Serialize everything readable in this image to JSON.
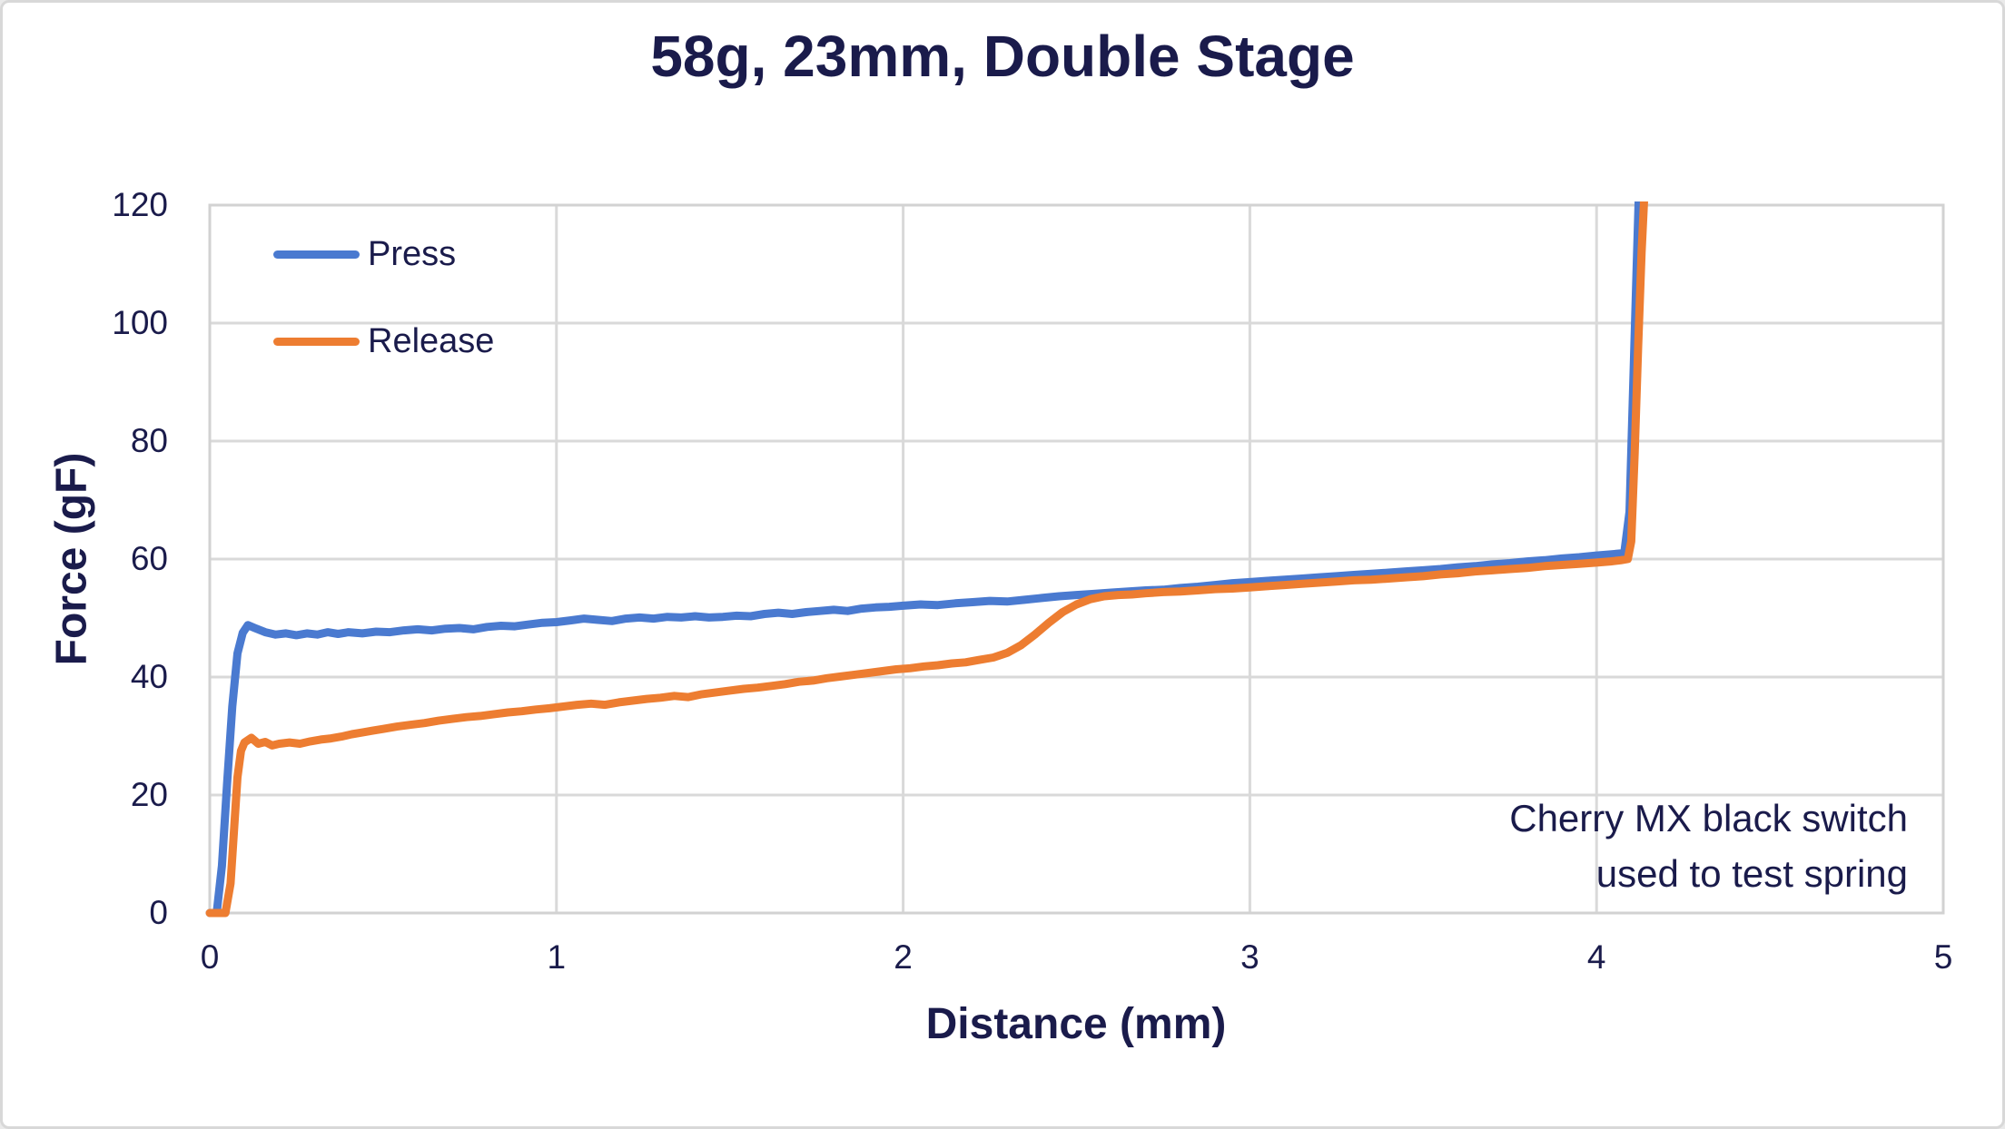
{
  "title": "58g, 23mm, Double Stage",
  "annotation": {
    "line1": "Cherry MX black switch",
    "line2": "used to test spring"
  },
  "colors": {
    "text": "#1A1B4B",
    "press": "#4A7AD0",
    "release": "#ED7D31",
    "gridline": "#D9D9D9",
    "plot_border": "#D2D2D2",
    "page_border": "#D8D8D8",
    "background": "#FFFFFF"
  },
  "chart_data": {
    "type": "line",
    "title": "58g, 23mm, Double Stage",
    "xlabel": "Distance (mm)",
    "ylabel": "Force (gF)",
    "xlim": [
      0,
      5
    ],
    "ylim": [
      0,
      120
    ],
    "x_ticks": [
      0,
      1,
      2,
      3,
      4,
      5
    ],
    "y_ticks": [
      0,
      20,
      40,
      60,
      80,
      100,
      120
    ],
    "grid": true,
    "legend_position": "inside top-left",
    "annotation_text": "Cherry MX black switch used to test spring",
    "series": [
      {
        "name": "Press",
        "color": "#4A7AD0",
        "points": [
          [
            0,
            0
          ],
          [
            0.02,
            0
          ],
          [
            0.035,
            8
          ],
          [
            0.05,
            22
          ],
          [
            0.065,
            35
          ],
          [
            0.08,
            44
          ],
          [
            0.095,
            47.5
          ],
          [
            0.11,
            48.8
          ],
          [
            0.13,
            48.3
          ],
          [
            0.16,
            47.6
          ],
          [
            0.19,
            47.2
          ],
          [
            0.22,
            47.4
          ],
          [
            0.25,
            47.1
          ],
          [
            0.28,
            47.4
          ],
          [
            0.31,
            47.2
          ],
          [
            0.34,
            47.6
          ],
          [
            0.37,
            47.3
          ],
          [
            0.4,
            47.6
          ],
          [
            0.44,
            47.4
          ],
          [
            0.48,
            47.7
          ],
          [
            0.52,
            47.6
          ],
          [
            0.56,
            47.9
          ],
          [
            0.6,
            48.1
          ],
          [
            0.64,
            47.9
          ],
          [
            0.68,
            48.2
          ],
          [
            0.72,
            48.3
          ],
          [
            0.76,
            48.1
          ],
          [
            0.8,
            48.5
          ],
          [
            0.84,
            48.7
          ],
          [
            0.88,
            48.6
          ],
          [
            0.92,
            48.9
          ],
          [
            0.96,
            49.2
          ],
          [
            1.0,
            49.3
          ],
          [
            1.04,
            49.6
          ],
          [
            1.08,
            49.9
          ],
          [
            1.12,
            49.7
          ],
          [
            1.16,
            49.5
          ],
          [
            1.2,
            49.9
          ],
          [
            1.24,
            50.1
          ],
          [
            1.28,
            49.9
          ],
          [
            1.32,
            50.2
          ],
          [
            1.36,
            50.1
          ],
          [
            1.4,
            50.3
          ],
          [
            1.44,
            50.1
          ],
          [
            1.48,
            50.2
          ],
          [
            1.52,
            50.4
          ],
          [
            1.56,
            50.3
          ],
          [
            1.6,
            50.7
          ],
          [
            1.64,
            50.9
          ],
          [
            1.68,
            50.7
          ],
          [
            1.72,
            51.0
          ],
          [
            1.76,
            51.2
          ],
          [
            1.8,
            51.4
          ],
          [
            1.84,
            51.2
          ],
          [
            1.88,
            51.6
          ],
          [
            1.92,
            51.8
          ],
          [
            1.96,
            51.9
          ],
          [
            2.0,
            52.1
          ],
          [
            2.05,
            52.3
          ],
          [
            2.1,
            52.2
          ],
          [
            2.15,
            52.5
          ],
          [
            2.2,
            52.7
          ],
          [
            2.25,
            52.9
          ],
          [
            2.3,
            52.8
          ],
          [
            2.35,
            53.1
          ],
          [
            2.4,
            53.4
          ],
          [
            2.45,
            53.7
          ],
          [
            2.5,
            53.9
          ],
          [
            2.55,
            54.1
          ],
          [
            2.6,
            54.3
          ],
          [
            2.65,
            54.5
          ],
          [
            2.7,
            54.7
          ],
          [
            2.75,
            54.8
          ],
          [
            2.8,
            55.1
          ],
          [
            2.85,
            55.3
          ],
          [
            2.9,
            55.6
          ],
          [
            2.95,
            55.9
          ],
          [
            3.0,
            56.1
          ],
          [
            3.05,
            56.3
          ],
          [
            3.1,
            56.5
          ],
          [
            3.15,
            56.7
          ],
          [
            3.2,
            56.9
          ],
          [
            3.25,
            57.1
          ],
          [
            3.3,
            57.3
          ],
          [
            3.35,
            57.5
          ],
          [
            3.4,
            57.7
          ],
          [
            3.45,
            57.9
          ],
          [
            3.5,
            58.1
          ],
          [
            3.55,
            58.3
          ],
          [
            3.6,
            58.6
          ],
          [
            3.65,
            58.8
          ],
          [
            3.7,
            59.1
          ],
          [
            3.75,
            59.3
          ],
          [
            3.8,
            59.6
          ],
          [
            3.85,
            59.8
          ],
          [
            3.9,
            60.1
          ],
          [
            3.95,
            60.3
          ],
          [
            4.0,
            60.6
          ],
          [
            4.04,
            60.8
          ],
          [
            4.08,
            61.0
          ],
          [
            4.095,
            68
          ],
          [
            4.105,
            88
          ],
          [
            4.115,
            108
          ],
          [
            4.122,
            122
          ]
        ]
      },
      {
        "name": "Release",
        "color": "#ED7D31",
        "points": [
          [
            0,
            0
          ],
          [
            0.045,
            0
          ],
          [
            0.06,
            5
          ],
          [
            0.07,
            14
          ],
          [
            0.08,
            23
          ],
          [
            0.09,
            27.5
          ],
          [
            0.1,
            28.9
          ],
          [
            0.12,
            29.7
          ],
          [
            0.14,
            28.7
          ],
          [
            0.16,
            29.0
          ],
          [
            0.18,
            28.4
          ],
          [
            0.2,
            28.7
          ],
          [
            0.23,
            28.9
          ],
          [
            0.26,
            28.7
          ],
          [
            0.29,
            29.1
          ],
          [
            0.32,
            29.4
          ],
          [
            0.35,
            29.6
          ],
          [
            0.38,
            29.9
          ],
          [
            0.41,
            30.3
          ],
          [
            0.44,
            30.6
          ],
          [
            0.47,
            30.9
          ],
          [
            0.5,
            31.2
          ],
          [
            0.54,
            31.6
          ],
          [
            0.58,
            31.9
          ],
          [
            0.62,
            32.2
          ],
          [
            0.66,
            32.6
          ],
          [
            0.7,
            32.9
          ],
          [
            0.74,
            33.2
          ],
          [
            0.78,
            33.4
          ],
          [
            0.82,
            33.7
          ],
          [
            0.86,
            34.0
          ],
          [
            0.9,
            34.2
          ],
          [
            0.94,
            34.5
          ],
          [
            0.98,
            34.7
          ],
          [
            1.02,
            35.0
          ],
          [
            1.06,
            35.3
          ],
          [
            1.1,
            35.5
          ],
          [
            1.14,
            35.3
          ],
          [
            1.18,
            35.7
          ],
          [
            1.22,
            36.0
          ],
          [
            1.26,
            36.3
          ],
          [
            1.3,
            36.5
          ],
          [
            1.34,
            36.8
          ],
          [
            1.38,
            36.6
          ],
          [
            1.42,
            37.1
          ],
          [
            1.46,
            37.4
          ],
          [
            1.5,
            37.7
          ],
          [
            1.54,
            38.0
          ],
          [
            1.58,
            38.2
          ],
          [
            1.62,
            38.5
          ],
          [
            1.66,
            38.8
          ],
          [
            1.7,
            39.2
          ],
          [
            1.74,
            39.4
          ],
          [
            1.78,
            39.8
          ],
          [
            1.82,
            40.1
          ],
          [
            1.86,
            40.4
          ],
          [
            1.9,
            40.7
          ],
          [
            1.94,
            41.0
          ],
          [
            1.98,
            41.3
          ],
          [
            2.02,
            41.5
          ],
          [
            2.06,
            41.8
          ],
          [
            2.1,
            42.0
          ],
          [
            2.14,
            42.3
          ],
          [
            2.18,
            42.5
          ],
          [
            2.22,
            42.9
          ],
          [
            2.26,
            43.3
          ],
          [
            2.3,
            44.1
          ],
          [
            2.34,
            45.4
          ],
          [
            2.38,
            47.2
          ],
          [
            2.42,
            49.2
          ],
          [
            2.46,
            51.0
          ],
          [
            2.5,
            52.3
          ],
          [
            2.54,
            53.2
          ],
          [
            2.58,
            53.7
          ],
          [
            2.62,
            53.9
          ],
          [
            2.66,
            54.0
          ],
          [
            2.7,
            54.2
          ],
          [
            2.75,
            54.4
          ],
          [
            2.8,
            54.5
          ],
          [
            2.85,
            54.7
          ],
          [
            2.9,
            54.9
          ],
          [
            2.95,
            55.0
          ],
          [
            3.0,
            55.2
          ],
          [
            3.05,
            55.4
          ],
          [
            3.1,
            55.6
          ],
          [
            3.15,
            55.8
          ],
          [
            3.2,
            56.0
          ],
          [
            3.25,
            56.2
          ],
          [
            3.3,
            56.4
          ],
          [
            3.35,
            56.5
          ],
          [
            3.4,
            56.7
          ],
          [
            3.45,
            56.9
          ],
          [
            3.5,
            57.1
          ],
          [
            3.55,
            57.4
          ],
          [
            3.6,
            57.6
          ],
          [
            3.65,
            57.9
          ],
          [
            3.7,
            58.1
          ],
          [
            3.75,
            58.3
          ],
          [
            3.8,
            58.5
          ],
          [
            3.85,
            58.8
          ],
          [
            3.9,
            59.0
          ],
          [
            3.95,
            59.2
          ],
          [
            4.0,
            59.4
          ],
          [
            4.04,
            59.6
          ],
          [
            4.07,
            59.8
          ],
          [
            4.09,
            60.0
          ],
          [
            4.1,
            63
          ],
          [
            4.11,
            78
          ],
          [
            4.12,
            96
          ],
          [
            4.13,
            112
          ],
          [
            4.138,
            122
          ]
        ]
      }
    ]
  }
}
